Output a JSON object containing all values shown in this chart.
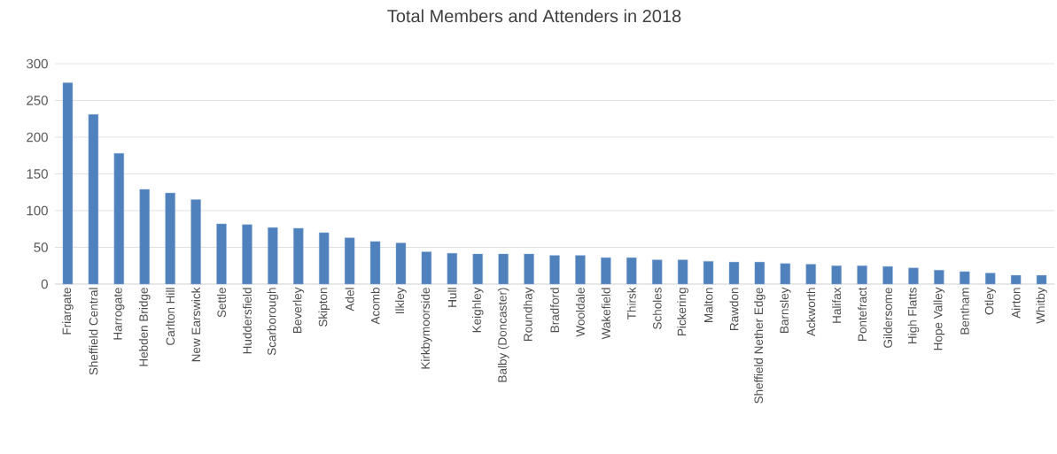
{
  "chart_data": {
    "type": "bar",
    "title": "Total Members and Attenders in 2018",
    "categories": [
      "Friargate",
      "Sheffield Central",
      "Harrogate",
      "Hebden Bridge",
      "Carlton Hill",
      "New Earswick",
      "Settle",
      "Huddersfield",
      "Scarborough",
      "Beverley",
      "Skipton",
      "Adel",
      "Acomb",
      "Ilkley",
      "Kirkbymoorside",
      "Hull",
      "Keighley",
      "Balby (Doncaster)",
      "Roundhay",
      "Bradford",
      "Wooldale",
      "Wakefield",
      "Thirsk",
      "Scholes",
      "Pickering",
      "Malton",
      "Rawdon",
      "Sheffield Nether Edge",
      "Barnsley",
      "Ackworth",
      "Halifax",
      "Pontefract",
      "Gildersome",
      "High Flatts",
      "Hope Valley",
      "Bentham",
      "Otley",
      "Airton",
      "Whitby"
    ],
    "values": [
      274,
      231,
      178,
      129,
      124,
      115,
      82,
      81,
      77,
      76,
      70,
      63,
      58,
      56,
      44,
      42,
      41,
      41,
      41,
      39,
      39,
      36,
      36,
      33,
      33,
      31,
      30,
      30,
      28,
      27,
      25,
      25,
      24,
      22,
      19,
      17,
      15,
      12,
      12
    ],
    "color": "#4f81bd",
    "ylim": [
      0,
      300
    ],
    "yticks": [
      0,
      50,
      100,
      150,
      200,
      250,
      300
    ],
    "grid": "y"
  }
}
